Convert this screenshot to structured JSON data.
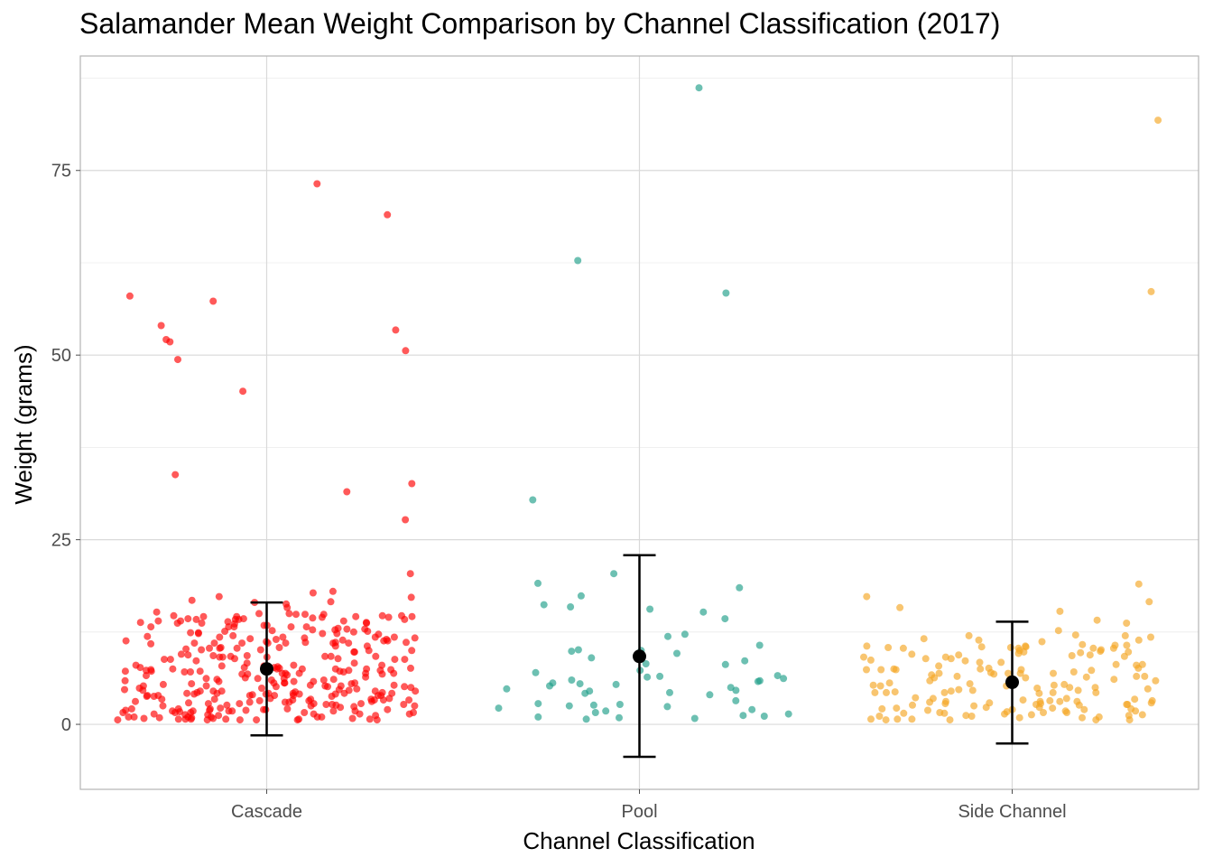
{
  "chart_data": {
    "type": "scatter",
    "title": "Salamander Mean Weight Comparison by Channel Classification (2017)",
    "xlabel": "Channel Classification",
    "ylabel": "Weight (grams)",
    "categories": [
      "Cascade",
      "Pool",
      "Side Channel"
    ],
    "y_ticks": [
      0,
      25,
      50,
      75
    ],
    "ylim": [
      -8.8,
      90.5
    ],
    "grid": true,
    "legend": "none",
    "series": [
      {
        "category": "Cascade",
        "color": "#FF0000",
        "point_count": 330,
        "values_outliers": [
          69.0,
          45.1,
          31.5,
          32.6,
          52.1,
          58.0,
          54.0,
          49.4,
          53.4,
          27.7,
          20.4,
          73.2,
          57.3,
          51.8,
          50.6,
          33.8,
          18.0,
          17.8,
          17.3,
          17.2,
          16.8,
          16.6,
          16.5,
          16.3,
          15.8,
          15.2
        ],
        "mean": 7.5,
        "error_low": -1.5,
        "error_high": 16.5
      },
      {
        "category": "Pool",
        "color": "#1F9E89",
        "values": [
          86.2,
          62.8,
          58.4,
          30.4,
          20.4,
          19.1,
          18.5,
          17.4,
          16.2,
          15.9,
          15.6,
          15.2,
          14.3,
          12.2,
          11.9,
          10.7,
          10.1,
          10.0,
          9.9,
          9.6,
          9.0,
          8.6,
          8.2,
          8.1,
          7.3,
          7.0,
          6.6,
          6.5,
          6.4,
          6.2,
          6.0,
          5.9,
          5.8,
          5.6,
          5.5,
          5.4,
          5.2,
          5.0,
          4.8,
          4.6,
          4.5,
          4.3,
          4.2,
          4.0,
          3.2,
          2.8,
          2.7,
          2.6,
          2.5,
          2.4,
          2.2,
          2.0,
          1.8,
          1.6,
          1.4,
          1.2,
          1.1,
          1.0,
          0.9,
          0.8,
          0.7
        ],
        "mean": 9.2,
        "error_low": -4.4,
        "error_high": 22.9
      },
      {
        "category": "Side Channel",
        "color": "#F5A623",
        "point_count": 160,
        "values_outliers": [
          81.8,
          58.6,
          19.0,
          17.3,
          16.6,
          15.8,
          15.3,
          14.1,
          13.7,
          12.7,
          12.0
        ],
        "mean": 5.7,
        "error_low": -2.6,
        "error_high": 13.9
      }
    ]
  }
}
